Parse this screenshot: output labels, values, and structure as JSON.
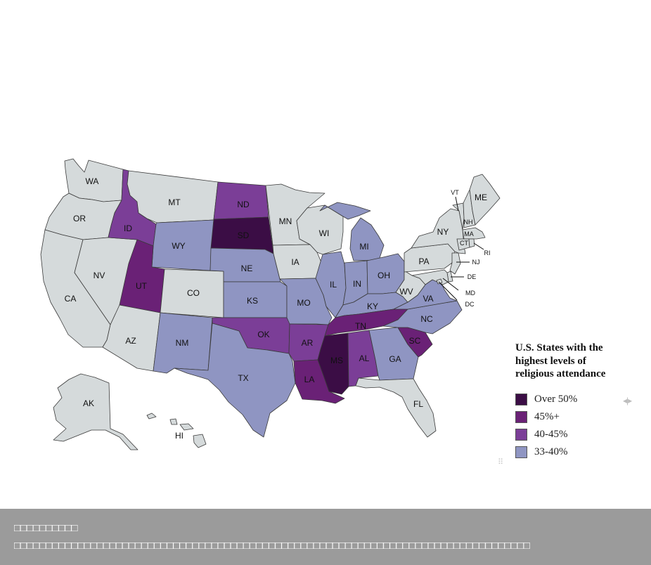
{
  "colors": {
    "default": "#d5dadb",
    "over50": "#3b0d45",
    "p45plus": "#6a2176",
    "p40_45": "#7b3e97",
    "p33_40": "#8f95c2",
    "footer_bg": "#9b9b9b"
  },
  "legend": {
    "title": "U.S. States with the highest levels of religious attendance",
    "items": [
      {
        "label": "Over 50%",
        "color": "#3b0d45"
      },
      {
        "label": "45%+",
        "color": "#6a2176"
      },
      {
        "label": "40-45%",
        "color": "#7b3e97"
      },
      {
        "label": "33-40%",
        "color": "#8f95c2"
      }
    ]
  },
  "states": {
    "WA": {
      "label": "WA",
      "category": "none"
    },
    "OR": {
      "label": "OR",
      "category": "none"
    },
    "CA": {
      "label": "CA",
      "category": "none"
    },
    "NV": {
      "label": "NV",
      "category": "none"
    },
    "ID": {
      "label": "ID",
      "category": "40-45%"
    },
    "MT": {
      "label": "MT",
      "category": "none"
    },
    "WY": {
      "label": "WY",
      "category": "33-40%"
    },
    "UT": {
      "label": "UT",
      "category": "45%+"
    },
    "CO": {
      "label": "CO",
      "category": "none"
    },
    "AZ": {
      "label": "AZ",
      "category": "none"
    },
    "NM": {
      "label": "NM",
      "category": "33-40%"
    },
    "ND": {
      "label": "ND",
      "category": "40-45%"
    },
    "SD": {
      "label": "SD",
      "category": "Over 50%"
    },
    "NE": {
      "label": "NE",
      "category": "33-40%"
    },
    "KS": {
      "label": "KS",
      "category": "33-40%"
    },
    "OK": {
      "label": "OK",
      "category": "40-45%"
    },
    "TX": {
      "label": "TX",
      "category": "33-40%"
    },
    "MN": {
      "label": "MN",
      "category": "none"
    },
    "IA": {
      "label": "IA",
      "category": "none"
    },
    "MO": {
      "label": "MO",
      "category": "33-40%"
    },
    "AR": {
      "label": "AR",
      "category": "40-45%"
    },
    "LA": {
      "label": "LA",
      "category": "45%+"
    },
    "WI": {
      "label": "WI",
      "category": "none"
    },
    "IL": {
      "label": "IL",
      "category": "33-40%"
    },
    "MI": {
      "label": "MI",
      "category": "33-40%"
    },
    "IN": {
      "label": "IN",
      "category": "33-40%"
    },
    "OH": {
      "label": "OH",
      "category": "33-40%"
    },
    "KY": {
      "label": "KY",
      "category": "33-40%"
    },
    "TN": {
      "label": "TN",
      "category": "45%+"
    },
    "MS": {
      "label": "MS",
      "category": "Over 50%"
    },
    "AL": {
      "label": "AL",
      "category": "40-45%"
    },
    "GA": {
      "label": "GA",
      "category": "33-40%"
    },
    "FL": {
      "label": "FL",
      "category": "none"
    },
    "SC": {
      "label": "SC",
      "category": "45%+"
    },
    "NC": {
      "label": "NC",
      "category": "33-40%"
    },
    "VA": {
      "label": "VA",
      "category": "33-40%"
    },
    "WV": {
      "label": "WV",
      "category": "none"
    },
    "PA": {
      "label": "PA",
      "category": "none"
    },
    "NY": {
      "label": "NY",
      "category": "none"
    },
    "VT": {
      "label": "VT",
      "category": "none"
    },
    "NH": {
      "label": "NH",
      "category": "none"
    },
    "ME": {
      "label": "ME",
      "category": "none"
    },
    "MA": {
      "label": "MA",
      "category": "none"
    },
    "CT": {
      "label": "CT",
      "category": "none"
    },
    "RI": {
      "label": "RI",
      "category": "none"
    },
    "NJ": {
      "label": "NJ",
      "category": "none"
    },
    "DE": {
      "label": "DE",
      "category": "none"
    },
    "MD": {
      "label": "MD",
      "category": "none"
    },
    "DC": {
      "label": "DC",
      "category": "none"
    },
    "AK": {
      "label": "AK",
      "category": "none"
    },
    "HI": {
      "label": "HI",
      "category": "none"
    }
  },
  "nav_arrows": "◂|▸",
  "drag_handle": "⠿",
  "footer": {
    "title": "□□□□□□□□□□",
    "text": "□□□□□□□□□□□□□□□□□□□□□□□□□□□□□□□□□□□□□□□□□□□□□□□□□□□□□□□□□□□□□□□□□□□□□□□□□□□□□□□□□"
  }
}
